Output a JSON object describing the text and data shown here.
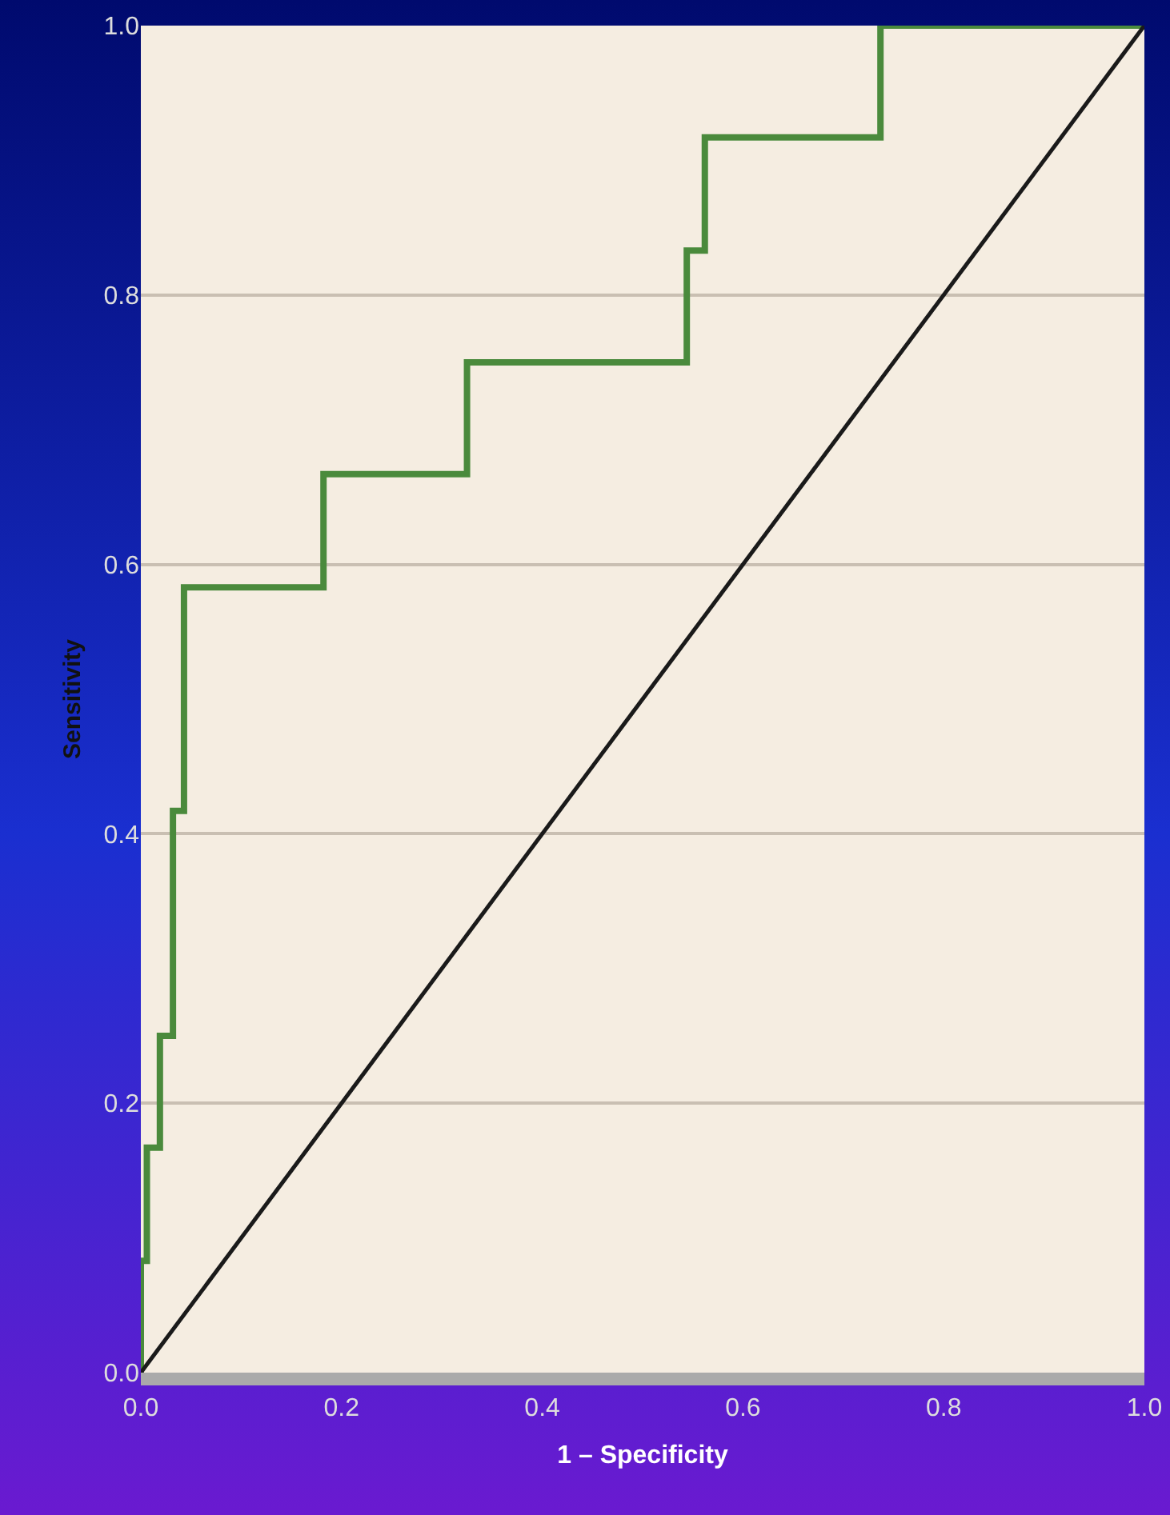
{
  "chart_data": {
    "type": "step",
    "xlabel": "1 – Specificity",
    "ylabel": "Sensitivity",
    "series": [
      {
        "color": "#4a8a3c",
        "x": [
          0,
          0,
          0.006,
          0.019,
          0.032,
          0.043,
          0.182,
          0.325,
          0.544,
          0.562,
          0.737,
          1.0
        ],
        "values": [
          0,
          0.083,
          0.167,
          0.25,
          0.417,
          0.583,
          0.667,
          0.75,
          0.833,
          0.917,
          1.0,
          1.0
        ]
      },
      {
        "type": "line",
        "color": "#1a1a1a",
        "x": [
          0,
          1
        ],
        "values": [
          0,
          1
        ]
      }
    ],
    "xlim": [
      0,
      1
    ],
    "ylim": [
      0,
      1
    ],
    "xticks": [
      {
        "value": 0,
        "label": "0.0"
      },
      {
        "value": 0.2,
        "label": "0.2"
      },
      {
        "value": 0.4,
        "label": "0.4"
      },
      {
        "value": 0.6,
        "label": "0.6"
      },
      {
        "value": 0.8,
        "label": "0.8"
      },
      {
        "value": 1,
        "label": "1.0"
      }
    ],
    "yticks": [
      {
        "value": 0,
        "label": "0.0"
      },
      {
        "value": 0.2,
        "label": "0.2"
      },
      {
        "value": 0.4,
        "label": "0.4"
      },
      {
        "value": 0.6,
        "label": "0.6"
      },
      {
        "value": 0.8,
        "label": "0.8"
      },
      {
        "value": 1,
        "label": "1.0"
      }
    ],
    "grid": "y",
    "line_style": "solid",
    "marker": "none"
  }
}
